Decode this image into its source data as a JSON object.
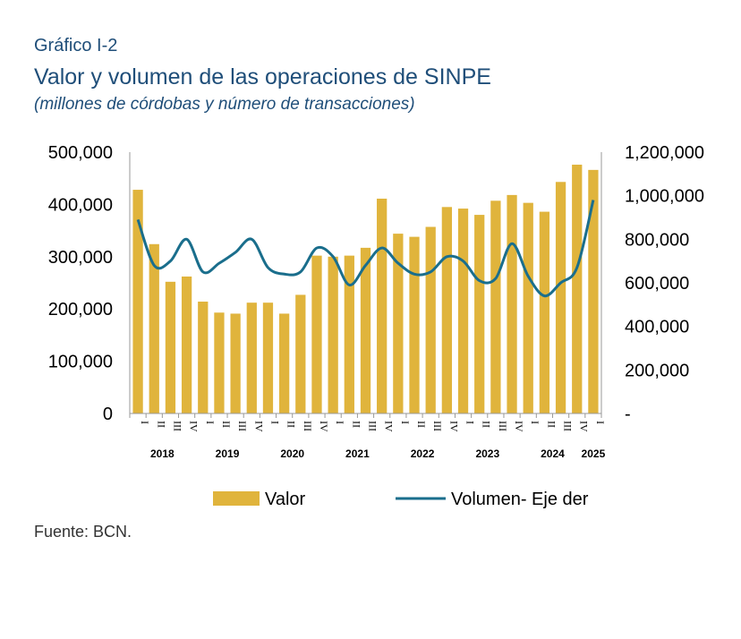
{
  "header": {
    "kicker": "Gráfico I-2",
    "title": "Valor y volumen de las operaciones de SINPE",
    "subtitle": "(millones de córdobas y número de transacciones)"
  },
  "footer": {
    "source": "Fuente: BCN."
  },
  "colors": {
    "bar": "#e0b43c",
    "line": "#1a6e8c",
    "title": "#1f4e79",
    "axis": "#999999"
  },
  "chart_data": {
    "type": "bar",
    "categories": [
      "I",
      "II",
      "III",
      "IV",
      "I",
      "II",
      "III",
      "IV",
      "I",
      "II",
      "III",
      "IV",
      "I",
      "II",
      "III",
      "IV",
      "I",
      "II",
      "III",
      "IV",
      "I",
      "II",
      "III",
      "IV",
      "I",
      "II",
      "III",
      "IV",
      "I"
    ],
    "year_labels": [
      {
        "label": "2018",
        "start": 0,
        "end": 3
      },
      {
        "label": "2019",
        "start": 4,
        "end": 7
      },
      {
        "label": "2020",
        "start": 8,
        "end": 11
      },
      {
        "label": "2021",
        "start": 12,
        "end": 15
      },
      {
        "label": "2022",
        "start": 16,
        "end": 19
      },
      {
        "label": "2023",
        "start": 20,
        "end": 23
      },
      {
        "label": "2024",
        "start": 24,
        "end": 27
      },
      {
        "label": "2025",
        "start": 28,
        "end": 28
      }
    ],
    "series": [
      {
        "name": "Valor",
        "type": "bar",
        "axis": "left",
        "values": [
          428000,
          324000,
          252000,
          262000,
          214000,
          193000,
          191000,
          212000,
          212000,
          191000,
          227000,
          302000,
          300000,
          302000,
          317000,
          411000,
          344000,
          338000,
          357000,
          395000,
          392000,
          380000,
          407000,
          418000,
          403000,
          386000,
          443000,
          476000,
          466000
        ]
      },
      {
        "name": "Volumen- Eje der",
        "type": "line",
        "axis": "right",
        "values": [
          890000,
          680000,
          700000,
          800000,
          650000,
          690000,
          740000,
          800000,
          670000,
          640000,
          650000,
          760000,
          720000,
          590000,
          680000,
          760000,
          690000,
          640000,
          650000,
          720000,
          700000,
          610000,
          620000,
          780000,
          630000,
          540000,
          600000,
          670000,
          980000
        ]
      }
    ],
    "y_left": {
      "min": 0,
      "max": 500000,
      "ticks": [
        "0",
        "100,000",
        "200,000",
        "300,000",
        "400,000",
        "500,000"
      ]
    },
    "y_right": {
      "min": 0,
      "max": 1200000,
      "ticks": [
        "-",
        "200,000",
        "400,000",
        "600,000",
        "800,000",
        "1,000,000",
        "1,200,000"
      ]
    },
    "grid": false,
    "legend_position": "bottom"
  }
}
